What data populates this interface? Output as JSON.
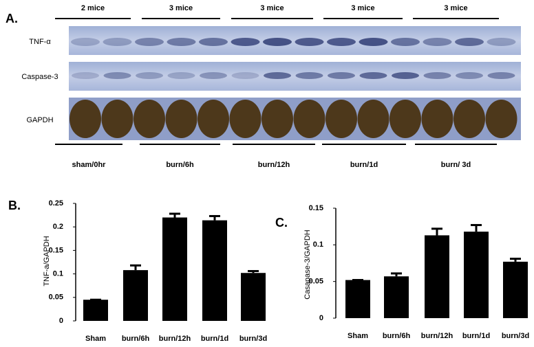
{
  "blot": {
    "panel_label": "A.",
    "group_labels": [
      "2 mice",
      "3 mice",
      "3 mice",
      "3 mice",
      "3 mice"
    ],
    "rows": [
      "TNF-α",
      "Caspase-3",
      "GAPDH"
    ],
    "conditions": [
      "sham/0hr",
      "burn/6h",
      "burn/12h",
      "burn/1d",
      "burn/ 3d"
    ]
  },
  "chart_data": [
    {
      "type": "bar",
      "panel_label": "B.",
      "y_label": "TNF-a/GAPDH",
      "categories": [
        "Sham",
        "burn/6h",
        "burn/12h",
        "burn/1d",
        "burn/3d"
      ],
      "values": [
        0.045,
        0.108,
        0.22,
        0.214,
        0.102
      ],
      "errors": [
        0,
        0.01,
        0.008,
        0.009,
        0.004
      ],
      "color": "#000000",
      "ylim": [
        0,
        0.25
      ],
      "yticks": [
        0,
        0.05,
        0.1,
        0.15,
        0.2,
        0.25
      ]
    },
    {
      "type": "bar",
      "panel_label": "C.",
      "y_label": "Casapase-3/GAPDH",
      "categories": [
        "Sham",
        "burn/6h",
        "burn/12h",
        "burn/1d",
        "burn/3d"
      ],
      "values": [
        0.052,
        0.057,
        0.113,
        0.118,
        0.077
      ],
      "errors": [
        0,
        0.004,
        0.009,
        0.009,
        0.004
      ],
      "color": "#000000",
      "ylim": [
        0,
        0.15
      ],
      "yticks": [
        0,
        0.05,
        0.1,
        0.15
      ]
    }
  ]
}
